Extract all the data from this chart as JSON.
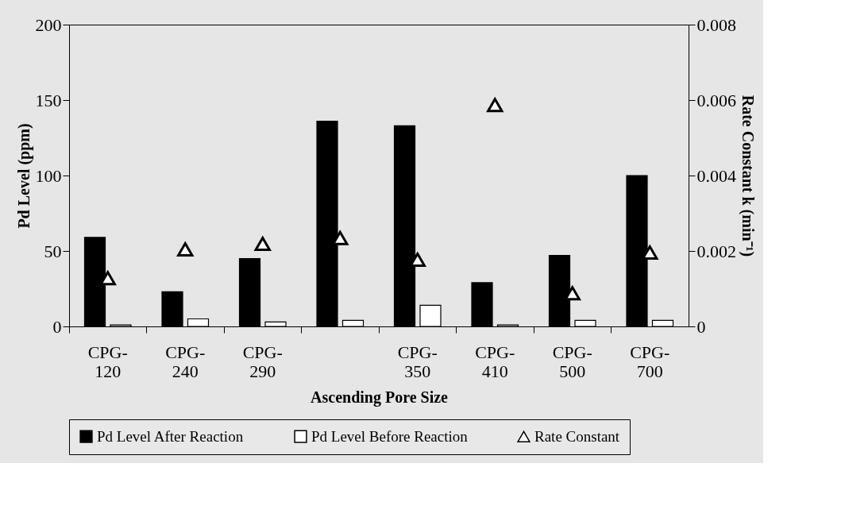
{
  "chart_data": {
    "type": "bar",
    "xlabel": "Ascending Pore Size",
    "ylabel": "Pd Level (ppm)",
    "y2label": "Rate Constant k (min⁻¹)",
    "categories": [
      "CPG-120",
      "CPG-240",
      "CPG-290",
      null,
      "CPG-350",
      "CPG-410",
      "CPG-500",
      "CPG-700"
    ],
    "series": [
      {
        "name": "Pd Level After Reaction",
        "color": "#000000",
        "values": [
          59,
          23,
          45,
          136,
          133,
          29,
          47,
          100
        ]
      },
      {
        "name": "Pd Level Before Reaction",
        "color": "#ffffff",
        "values": [
          1,
          5,
          3,
          4,
          14,
          1,
          4,
          4
        ]
      },
      {
        "name": "Rate Constant",
        "type": "scatter",
        "axis": "y2",
        "marker": "triangle",
        "color": "#ffffff",
        "values": [
          0.00128,
          0.00204,
          0.00219,
          0.00234,
          0.00177,
          0.00587,
          0.00088,
          0.00196
        ]
      }
    ],
    "ylim": [
      0,
      200
    ],
    "yticks": [
      0,
      50,
      100,
      150,
      200
    ],
    "y2lim": [
      0,
      0.008
    ],
    "y2ticks": [
      0,
      0.002,
      0.004,
      0.006,
      0.008
    ],
    "grid": false,
    "legend": "bottom"
  }
}
